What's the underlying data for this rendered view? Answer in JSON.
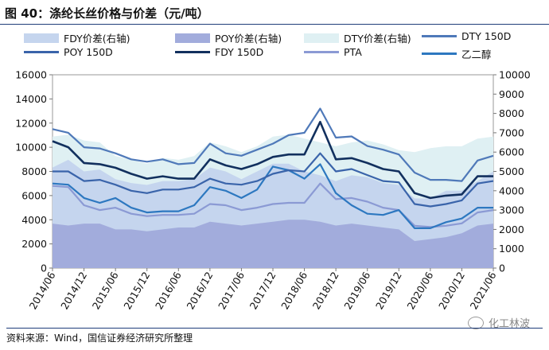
{
  "header": {
    "title": "图 40：涤纶长丝价格与价差（元/吨）"
  },
  "footer": {
    "source": "资料来源：Wind，国信证券经济研究所整理",
    "watermark": "化工林波"
  },
  "colors": {
    "fdy_spread": "#c5d5ee",
    "poy_spread": "#a2acdc",
    "dty_spread": "#dff0f3",
    "dty": "#4f79b9",
    "poy": "#3a64aa",
    "fdy": "#12305e",
    "pta": "#8b9ad4",
    "meg": "#2d78c0"
  },
  "chart_data": {
    "type": "line",
    "title": "涤纶长丝价格与价差（元/吨）",
    "x_ticks": [
      "2014/06",
      "2014/12",
      "2015/06",
      "2015/12",
      "2016/06",
      "2016/12",
      "2017/06",
      "2017/12",
      "2018/06",
      "2018/12",
      "2019/06",
      "2019/12",
      "2020/06",
      "2020/12",
      "2021/06"
    ],
    "left_axis": {
      "ylim": [
        0,
        16000
      ],
      "ticks": [
        "0",
        "2000",
        "4000",
        "6000",
        "8000",
        "10000",
        "12000",
        "14000",
        "16000"
      ]
    },
    "right_axis": {
      "ylim": [
        0,
        10000
      ],
      "ticks": [
        "0",
        "1000",
        "2000",
        "3000",
        "4000",
        "5000",
        "6000",
        "7000",
        "8000",
        "9000",
        "10000"
      ]
    },
    "dates": [
      "2014/06",
      "2014/09",
      "2014/12",
      "2015/03",
      "2015/06",
      "2015/09",
      "2015/12",
      "2016/03",
      "2016/06",
      "2016/09",
      "2016/12",
      "2017/03",
      "2017/06",
      "2017/09",
      "2017/12",
      "2018/03",
      "2018/06",
      "2018/09",
      "2018/12",
      "2019/03",
      "2019/06",
      "2019/09",
      "2019/12",
      "2020/03",
      "2020/06",
      "2020/09",
      "2020/12",
      "2021/03",
      "2021/06"
    ],
    "series": [
      {
        "name": "FDY价差(右轴)",
        "type": "area",
        "axis": "right",
        "values": [
          5200,
          5600,
          5000,
          5100,
          4600,
          4400,
          4300,
          4500,
          4500,
          4600,
          5200,
          5000,
          4600,
          5000,
          5400,
          5400,
          5000,
          4800,
          4500,
          4800,
          4700,
          4400,
          4300,
          3600,
          3600,
          4000,
          4000,
          4500,
          5000
        ]
      },
      {
        "name": "POY价差(右轴)",
        "type": "area",
        "axis": "right",
        "values": [
          2300,
          2200,
          2300,
          2300,
          2000,
          2000,
          1900,
          2000,
          2100,
          2100,
          2400,
          2300,
          2200,
          2300,
          2400,
          2500,
          2500,
          2400,
          2200,
          2300,
          2200,
          2100,
          2000,
          1400,
          1500,
          1600,
          1800,
          2200,
          2300
        ]
      },
      {
        "name": "DTY价差(右轴)",
        "type": "area",
        "axis": "right",
        "values": [
          6800,
          6900,
          6600,
          6500,
          5800,
          5600,
          5400,
          5700,
          5600,
          5800,
          6500,
          6300,
          6000,
          6300,
          6800,
          6900,
          6700,
          6500,
          6300,
          6500,
          6600,
          6400,
          6100,
          6000,
          6200,
          6300,
          6300,
          6700,
          6800
        ]
      },
      {
        "name": "DTY 150D",
        "type": "line",
        "axis": "left",
        "values": [
          11500,
          11200,
          10000,
          9900,
          9500,
          9000,
          8800,
          9000,
          8600,
          8700,
          10300,
          9500,
          9300,
          9800,
          10300,
          11000,
          11200,
          13200,
          10800,
          10900,
          10100,
          9800,
          9400,
          7900,
          7300,
          7300,
          7200,
          8900,
          9300
        ]
      },
      {
        "name": "POY 150D",
        "type": "line",
        "axis": "left",
        "values": [
          8000,
          8000,
          7200,
          7300,
          6900,
          6400,
          6200,
          6500,
          6500,
          6700,
          7400,
          7000,
          6900,
          7200,
          7800,
          8100,
          8000,
          9500,
          8000,
          8200,
          7700,
          7200,
          7100,
          5300,
          5100,
          5300,
          5600,
          7000,
          7200
        ]
      },
      {
        "name": "FDY 150D",
        "type": "line",
        "axis": "left",
        "values": [
          10500,
          10000,
          8700,
          8600,
          8300,
          7800,
          7400,
          7600,
          7400,
          7400,
          9000,
          8500,
          8200,
          8600,
          9200,
          9400,
          9400,
          12100,
          9000,
          9100,
          8700,
          8200,
          8000,
          6200,
          5800,
          6000,
          6100,
          7600,
          7600
        ]
      },
      {
        "name": "PTA",
        "type": "line",
        "axis": "left",
        "values": [
          6800,
          6700,
          5200,
          4800,
          5000,
          4500,
          4300,
          4400,
          4400,
          4500,
          5300,
          5200,
          4800,
          5000,
          5300,
          5400,
          5400,
          7000,
          5700,
          5800,
          5500,
          5000,
          4800,
          3500,
          3400,
          3500,
          3700,
          4600,
          4800
        ]
      },
      {
        "name": "乙二醇",
        "type": "line",
        "axis": "left",
        "values": [
          7000,
          6900,
          5800,
          5400,
          5800,
          5000,
          4600,
          4700,
          4700,
          5200,
          6700,
          6400,
          5800,
          6500,
          8400,
          8100,
          7400,
          8600,
          6200,
          5200,
          4500,
          4400,
          4800,
          3300,
          3300,
          3800,
          4100,
          5000,
          5000
        ]
      }
    ]
  }
}
